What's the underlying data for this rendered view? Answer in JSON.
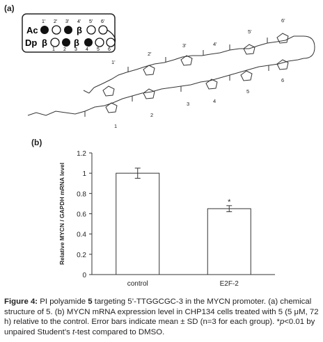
{
  "figure": {
    "panel_a": "(a)",
    "panel_b": "(b)",
    "caption": {
      "label": "Figure 4:",
      "text_1": " PI polyamide ",
      "compound": "5",
      "text_2": " targeting 5’-TTGGCGC-3 in the MYCN promoter. (a) chemical structure of 5. (b) MYCN mRNA expression level in CHP134 cells treated with 5 (5 μM, 72 h) relative to the control. Error bars indicate mean ± SD (n=3 for each group). *",
      "p": "p",
      "text_3": "<0.01 by unpaired Student’s ",
      "t": "t",
      "text_4": "-test compared to DMSO."
    }
  },
  "schematic": {
    "row1": {
      "start": "Ac",
      "beta": "β",
      "top_numbers": [
        "1'",
        "2'",
        "3'",
        "4'",
        "5'",
        "6'"
      ]
    },
    "row2": {
      "start": "Dp",
      "beta1": "β",
      "beta2": "β",
      "bottom_numbers": [
        "1",
        "2",
        "3",
        "4",
        "5",
        "6"
      ]
    }
  },
  "structure_labels": {
    "primes": [
      "1'",
      "2'",
      "3'",
      "4'",
      "5'",
      "6'"
    ],
    "plain": [
      "1",
      "2",
      "3",
      "4",
      "5",
      "6"
    ]
  },
  "chart_data": {
    "type": "bar",
    "categories": [
      "control",
      "E2F-2"
    ],
    "values": [
      1.0,
      0.65
    ],
    "errors": [
      0.05,
      0.03
    ],
    "significance": [
      "",
      "*"
    ],
    "ylabel": "Relative MYCN / GAPDH mRNA level",
    "ylim": [
      0,
      1.2
    ],
    "yticks": [
      "0",
      "0.2",
      "0.4",
      "0.6",
      "0.8",
      "1",
      "1.2"
    ],
    "grid": false
  }
}
